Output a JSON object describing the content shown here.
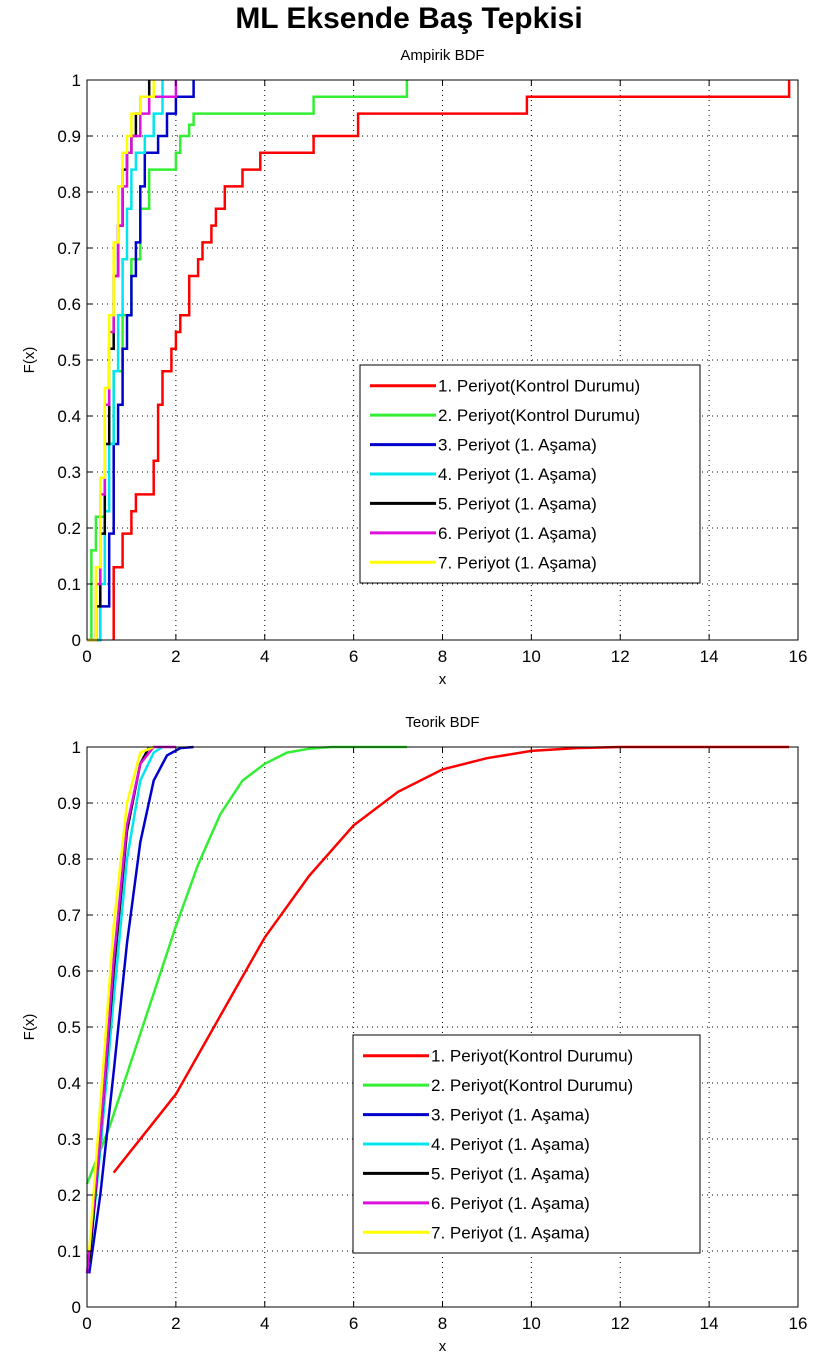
{
  "figure": {
    "title": "ML Eksende Baş Tepkisi"
  },
  "legend_labels": [
    "1. Periyot(Kontrol Durumu)",
    "2. Periyot(Kontrol Durumu)",
    "3. Periyot (1. Aşama)",
    "4. Periyot (1. Aşama)",
    "5. Periyot (1. Aşama)",
    "6. Periyot (1. Aşama)",
    "7. Periyot (1. Aşama)"
  ],
  "colors": [
    "#ff0000",
    "#33ee33",
    "#0000cc",
    "#00e5ee",
    "#000000",
    "#dd11dd",
    "#ffff00"
  ],
  "chart_data": [
    {
      "type": "line",
      "step": true,
      "title": "Ampirik BDF",
      "xlabel": "x",
      "ylabel": "F(x)",
      "xlim": [
        0,
        16
      ],
      "ylim": [
        0,
        1
      ],
      "xticks": [
        0,
        2,
        4,
        6,
        8,
        10,
        12,
        14,
        16
      ],
      "yticks": [
        0,
        0.1,
        0.2,
        0.3,
        0.4,
        0.5,
        0.6,
        0.7,
        0.8,
        0.9,
        1
      ],
      "grid": true,
      "legend_position": "center-right",
      "series": [
        {
          "name": "1. Periyot(Kontrol Durumu)",
          "x": [
            0.6,
            0.6,
            0.8,
            1.0,
            1.1,
            1.5,
            1.6,
            1.7,
            1.9,
            2.0,
            2.1,
            2.3,
            2.5,
            2.6,
            2.8,
            2.9,
            3.1,
            3.5,
            3.9,
            5.1,
            6.1,
            9.9,
            15.8
          ],
          "y": [
            0,
            0.13,
            0.19,
            0.23,
            0.26,
            0.32,
            0.42,
            0.48,
            0.52,
            0.55,
            0.58,
            0.65,
            0.68,
            0.71,
            0.74,
            0.77,
            0.81,
            0.84,
            0.87,
            0.9,
            0.94,
            0.97,
            1.0
          ]
        },
        {
          "name": "2. Periyot(Kontrol Durumu)",
          "x": [
            0,
            0.1,
            0.2,
            0.4,
            0.6,
            0.8,
            1.0,
            1.2,
            1.4,
            2.0,
            2.1,
            2.3,
            2.4,
            5.1,
            7.2
          ],
          "y": [
            0,
            0.16,
            0.22,
            0.35,
            0.48,
            0.58,
            0.68,
            0.77,
            0.84,
            0.87,
            0.9,
            0.92,
            0.94,
            0.97,
            1.0
          ]
        },
        {
          "name": "3. Periyot (1. Aşama)",
          "x": [
            0.1,
            0.3,
            0.5,
            0.6,
            0.7,
            0.8,
            0.9,
            1.0,
            1.1,
            1.2,
            1.3,
            1.6,
            1.8,
            2.0,
            2.2,
            2.4
          ],
          "y": [
            0,
            0.06,
            0.19,
            0.35,
            0.42,
            0.52,
            0.58,
            0.65,
            0.71,
            0.81,
            0.87,
            0.9,
            0.94,
            0.97,
            0.97,
            1.0
          ]
        },
        {
          "name": "4. Periyot (1. Aşama)",
          "x": [
            0.1,
            0.3,
            0.4,
            0.5,
            0.6,
            0.7,
            0.8,
            0.9,
            1.0,
            1.1,
            1.3,
            1.5,
            1.7
          ],
          "y": [
            0,
            0.1,
            0.23,
            0.35,
            0.48,
            0.58,
            0.68,
            0.77,
            0.84,
            0.87,
            0.9,
            0.94,
            1.0
          ]
        },
        {
          "name": "5. Periyot (1. Aşama)",
          "x": [
            0.0,
            0.2,
            0.3,
            0.4,
            0.5,
            0.6,
            0.7,
            0.8,
            0.9,
            1.0,
            1.1,
            1.2,
            1.4
          ],
          "y": [
            0,
            0.06,
            0.19,
            0.35,
            0.52,
            0.65,
            0.74,
            0.84,
            0.87,
            0.9,
            0.94,
            0.97,
            1.0
          ]
        },
        {
          "name": "6. Periyot (1. Aşama)",
          "x": [
            0.0,
            0.2,
            0.3,
            0.4,
            0.5,
            0.6,
            0.7,
            0.8,
            0.9,
            1.0,
            1.2,
            1.4,
            1.6,
            2.0
          ],
          "y": [
            0,
            0.1,
            0.26,
            0.42,
            0.55,
            0.65,
            0.74,
            0.81,
            0.87,
            0.9,
            0.94,
            0.97,
            0.97,
            1.0
          ]
        },
        {
          "name": "7. Periyot (1. Aşama)",
          "x": [
            0.0,
            0.2,
            0.3,
            0.4,
            0.5,
            0.6,
            0.7,
            0.8,
            0.9,
            1.0,
            1.2,
            1.5
          ],
          "y": [
            0,
            0.13,
            0.29,
            0.45,
            0.58,
            0.71,
            0.81,
            0.87,
            0.9,
            0.94,
            0.97,
            1.0
          ]
        }
      ]
    },
    {
      "type": "line",
      "title": "Teorik BDF",
      "xlabel": "x",
      "ylabel": "F(x)",
      "xlim": [
        0,
        16
      ],
      "ylim": [
        0,
        1
      ],
      "xticks": [
        0,
        2,
        4,
        6,
        8,
        10,
        12,
        14,
        16
      ],
      "yticks": [
        0,
        0.1,
        0.2,
        0.3,
        0.4,
        0.5,
        0.6,
        0.7,
        0.8,
        0.9,
        1
      ],
      "grid": true,
      "legend_position": "center-right",
      "series": [
        {
          "name": "1. Periyot(Kontrol Durumu)",
          "x": [
            0.6,
            1,
            1.5,
            2,
            2.5,
            3,
            3.5,
            4,
            5,
            6,
            7,
            8,
            9,
            10,
            11,
            12,
            14,
            15.8
          ],
          "y": [
            0.24,
            0.28,
            0.33,
            0.38,
            0.45,
            0.52,
            0.59,
            0.66,
            0.77,
            0.86,
            0.92,
            0.96,
            0.98,
            0.993,
            0.998,
            1.0,
            1.0,
            1.0
          ]
        },
        {
          "name": "2. Periyot(Kontrol Durumu)",
          "x": [
            0,
            0.5,
            1,
            1.5,
            2,
            2.5,
            3,
            3.5,
            4,
            4.5,
            5,
            5.5,
            6,
            7.2
          ],
          "y": [
            0.22,
            0.32,
            0.44,
            0.56,
            0.68,
            0.79,
            0.88,
            0.94,
            0.97,
            0.99,
            0.997,
            1.0,
            1.0,
            1.0
          ]
        },
        {
          "name": "3. Periyot (1. Aşama)",
          "x": [
            0.05,
            0.3,
            0.6,
            0.9,
            1.2,
            1.5,
            1.8,
            2.1,
            2.4
          ],
          "y": [
            0.06,
            0.2,
            0.42,
            0.65,
            0.83,
            0.94,
            0.985,
            0.998,
            1.0
          ]
        },
        {
          "name": "4. Periyot (1. Aşama)",
          "x": [
            0.05,
            0.3,
            0.6,
            0.9,
            1.2,
            1.5,
            1.7
          ],
          "y": [
            0.08,
            0.28,
            0.55,
            0.8,
            0.94,
            0.99,
            1.0
          ]
        },
        {
          "name": "5. Periyot (1. Aşama)",
          "x": [
            0.05,
            0.3,
            0.6,
            0.9,
            1.2,
            1.4
          ],
          "y": [
            0.08,
            0.3,
            0.6,
            0.85,
            0.97,
            1.0
          ]
        },
        {
          "name": "6. Periyot (1. Aşama)",
          "x": [
            0.0,
            0.3,
            0.6,
            0.9,
            1.2,
            1.5,
            2.0
          ],
          "y": [
            0.06,
            0.3,
            0.62,
            0.86,
            0.97,
            1.0,
            1.0
          ]
        },
        {
          "name": "7. Periyot (1. Aşama)",
          "x": [
            0.05,
            0.3,
            0.6,
            0.9,
            1.2,
            1.5
          ],
          "y": [
            0.1,
            0.36,
            0.68,
            0.9,
            0.99,
            1.0
          ]
        }
      ]
    }
  ]
}
